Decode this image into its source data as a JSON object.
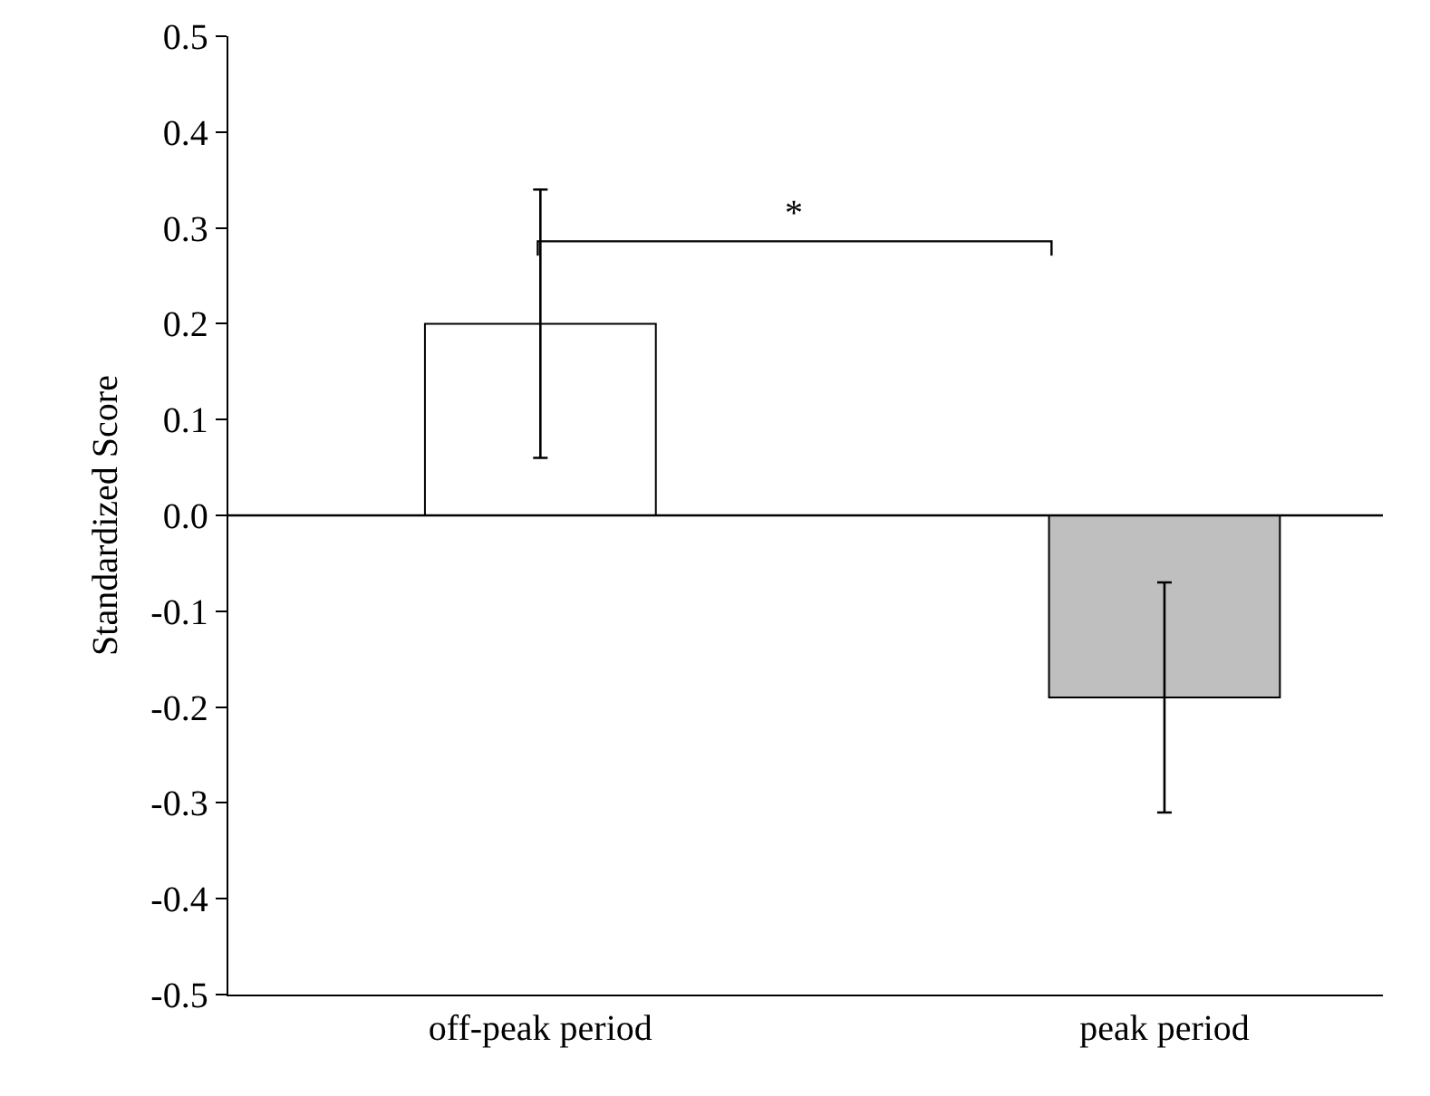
{
  "chart_data": {
    "type": "bar",
    "ylabel": "Standardized Score",
    "categories": [
      "off-peak period",
      "peak period"
    ],
    "values": [
      0.2,
      -0.19
    ],
    "colors": [
      "#ffffff",
      "#bfbfbf"
    ],
    "errors": [
      0.14,
      0.12
    ],
    "ylim": [
      -0.5,
      0.5
    ],
    "yticks": [
      -0.5,
      -0.4,
      -0.3,
      -0.2,
      -0.1,
      {
        "value": 0,
        "label": "0.0"
      },
      0.1,
      0.2,
      0.3,
      0.4,
      0.5
    ],
    "annotations": [
      "*"
    ],
    "ref_lines": [
      {
        "axis": "y",
        "value": 0
      }
    ],
    "grid": false
  }
}
